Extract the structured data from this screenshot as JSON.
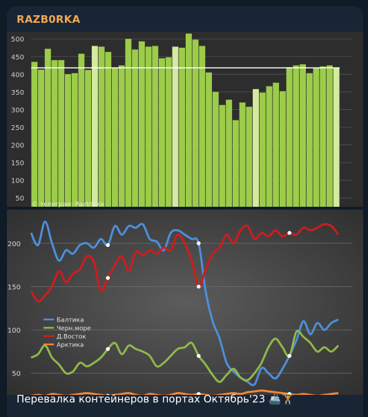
{
  "app": {
    "sender_name": "RAZB0RKA",
    "caption": "Перевалка контейнеров в портах Октябрь'23",
    "caption_emoji": "🚢🏋️"
  },
  "chart_data": [
    {
      "type": "bar",
      "watermark": "© телеграм: Razb0rka",
      "ylim": [
        25,
        520
      ],
      "yticks": [
        50,
        100,
        150,
        200,
        250,
        300,
        350,
        400,
        450,
        500
      ],
      "reference_line": 418,
      "colors": {
        "bar": "#9ccc4a",
        "highlight": "#d4eaa0",
        "line": "#ffffff"
      },
      "values": [
        435,
        413,
        472,
        440,
        440,
        400,
        403,
        458,
        412,
        480,
        478,
        463,
        418,
        425,
        500,
        470,
        493,
        478,
        480,
        445,
        448,
        478,
        475,
        515,
        498,
        480,
        405,
        350,
        313,
        328,
        270,
        320,
        308,
        358,
        348,
        366,
        376,
        352,
        420,
        425,
        428,
        403,
        418,
        422,
        425,
        418
      ],
      "highlighted": [
        9,
        21,
        33,
        45
      ]
    },
    {
      "type": "line",
      "ylim": [
        25,
        235
      ],
      "yticks": [
        50,
        100,
        150,
        200
      ],
      "legend_position": "left",
      "series": [
        {
          "name": "Балтика",
          "color": "#4d8fdc",
          "values": [
            212,
            198,
            225,
            200,
            180,
            192,
            188,
            198,
            200,
            195,
            205,
            198,
            220,
            210,
            220,
            218,
            222,
            205,
            202,
            192,
            212,
            215,
            210,
            205,
            200,
            145,
            110,
            90,
            62,
            52,
            45,
            40,
            37,
            56,
            50,
            44,
            55,
            70,
            88,
            110,
            95,
            108,
            100,
            108,
            112
          ]
        },
        {
          "name": "Черн.море",
          "color": "#8fb84c",
          "values": [
            68,
            72,
            82,
            68,
            60,
            50,
            52,
            62,
            58,
            62,
            68,
            78,
            85,
            72,
            82,
            78,
            75,
            70,
            58,
            62,
            70,
            78,
            80,
            85,
            70,
            60,
            48,
            40,
            48,
            55,
            45,
            42,
            50,
            62,
            80,
            90,
            80,
            70,
            98,
            92,
            85,
            75,
            80,
            75,
            82
          ]
        },
        {
          "name": "Д.Восток",
          "color": "#d01c1c",
          "values": [
            145,
            133,
            140,
            150,
            168,
            155,
            165,
            170,
            185,
            178,
            145,
            160,
            175,
            185,
            168,
            190,
            186,
            192,
            188,
            195,
            192,
            210,
            200,
            180,
            150,
            170,
            188,
            195,
            210,
            200,
            215,
            220,
            205,
            212,
            208,
            215,
            208,
            212,
            210,
            218,
            215,
            218,
            222,
            220,
            210
          ]
        },
        {
          "name": "Арктика",
          "color": "#f0873a",
          "values": [
            24,
            25,
            24,
            26,
            25,
            24,
            25,
            26,
            27,
            26,
            25,
            24,
            25,
            26,
            27,
            25,
            24,
            26,
            25,
            24,
            25,
            27,
            26,
            25,
            26,
            25,
            24,
            25,
            26,
            27,
            26,
            28,
            29,
            30,
            29,
            28,
            27,
            26,
            25,
            26,
            25,
            24,
            25,
            26,
            27
          ]
        }
      ],
      "highlighted": [
        11,
        24,
        37
      ]
    }
  ]
}
